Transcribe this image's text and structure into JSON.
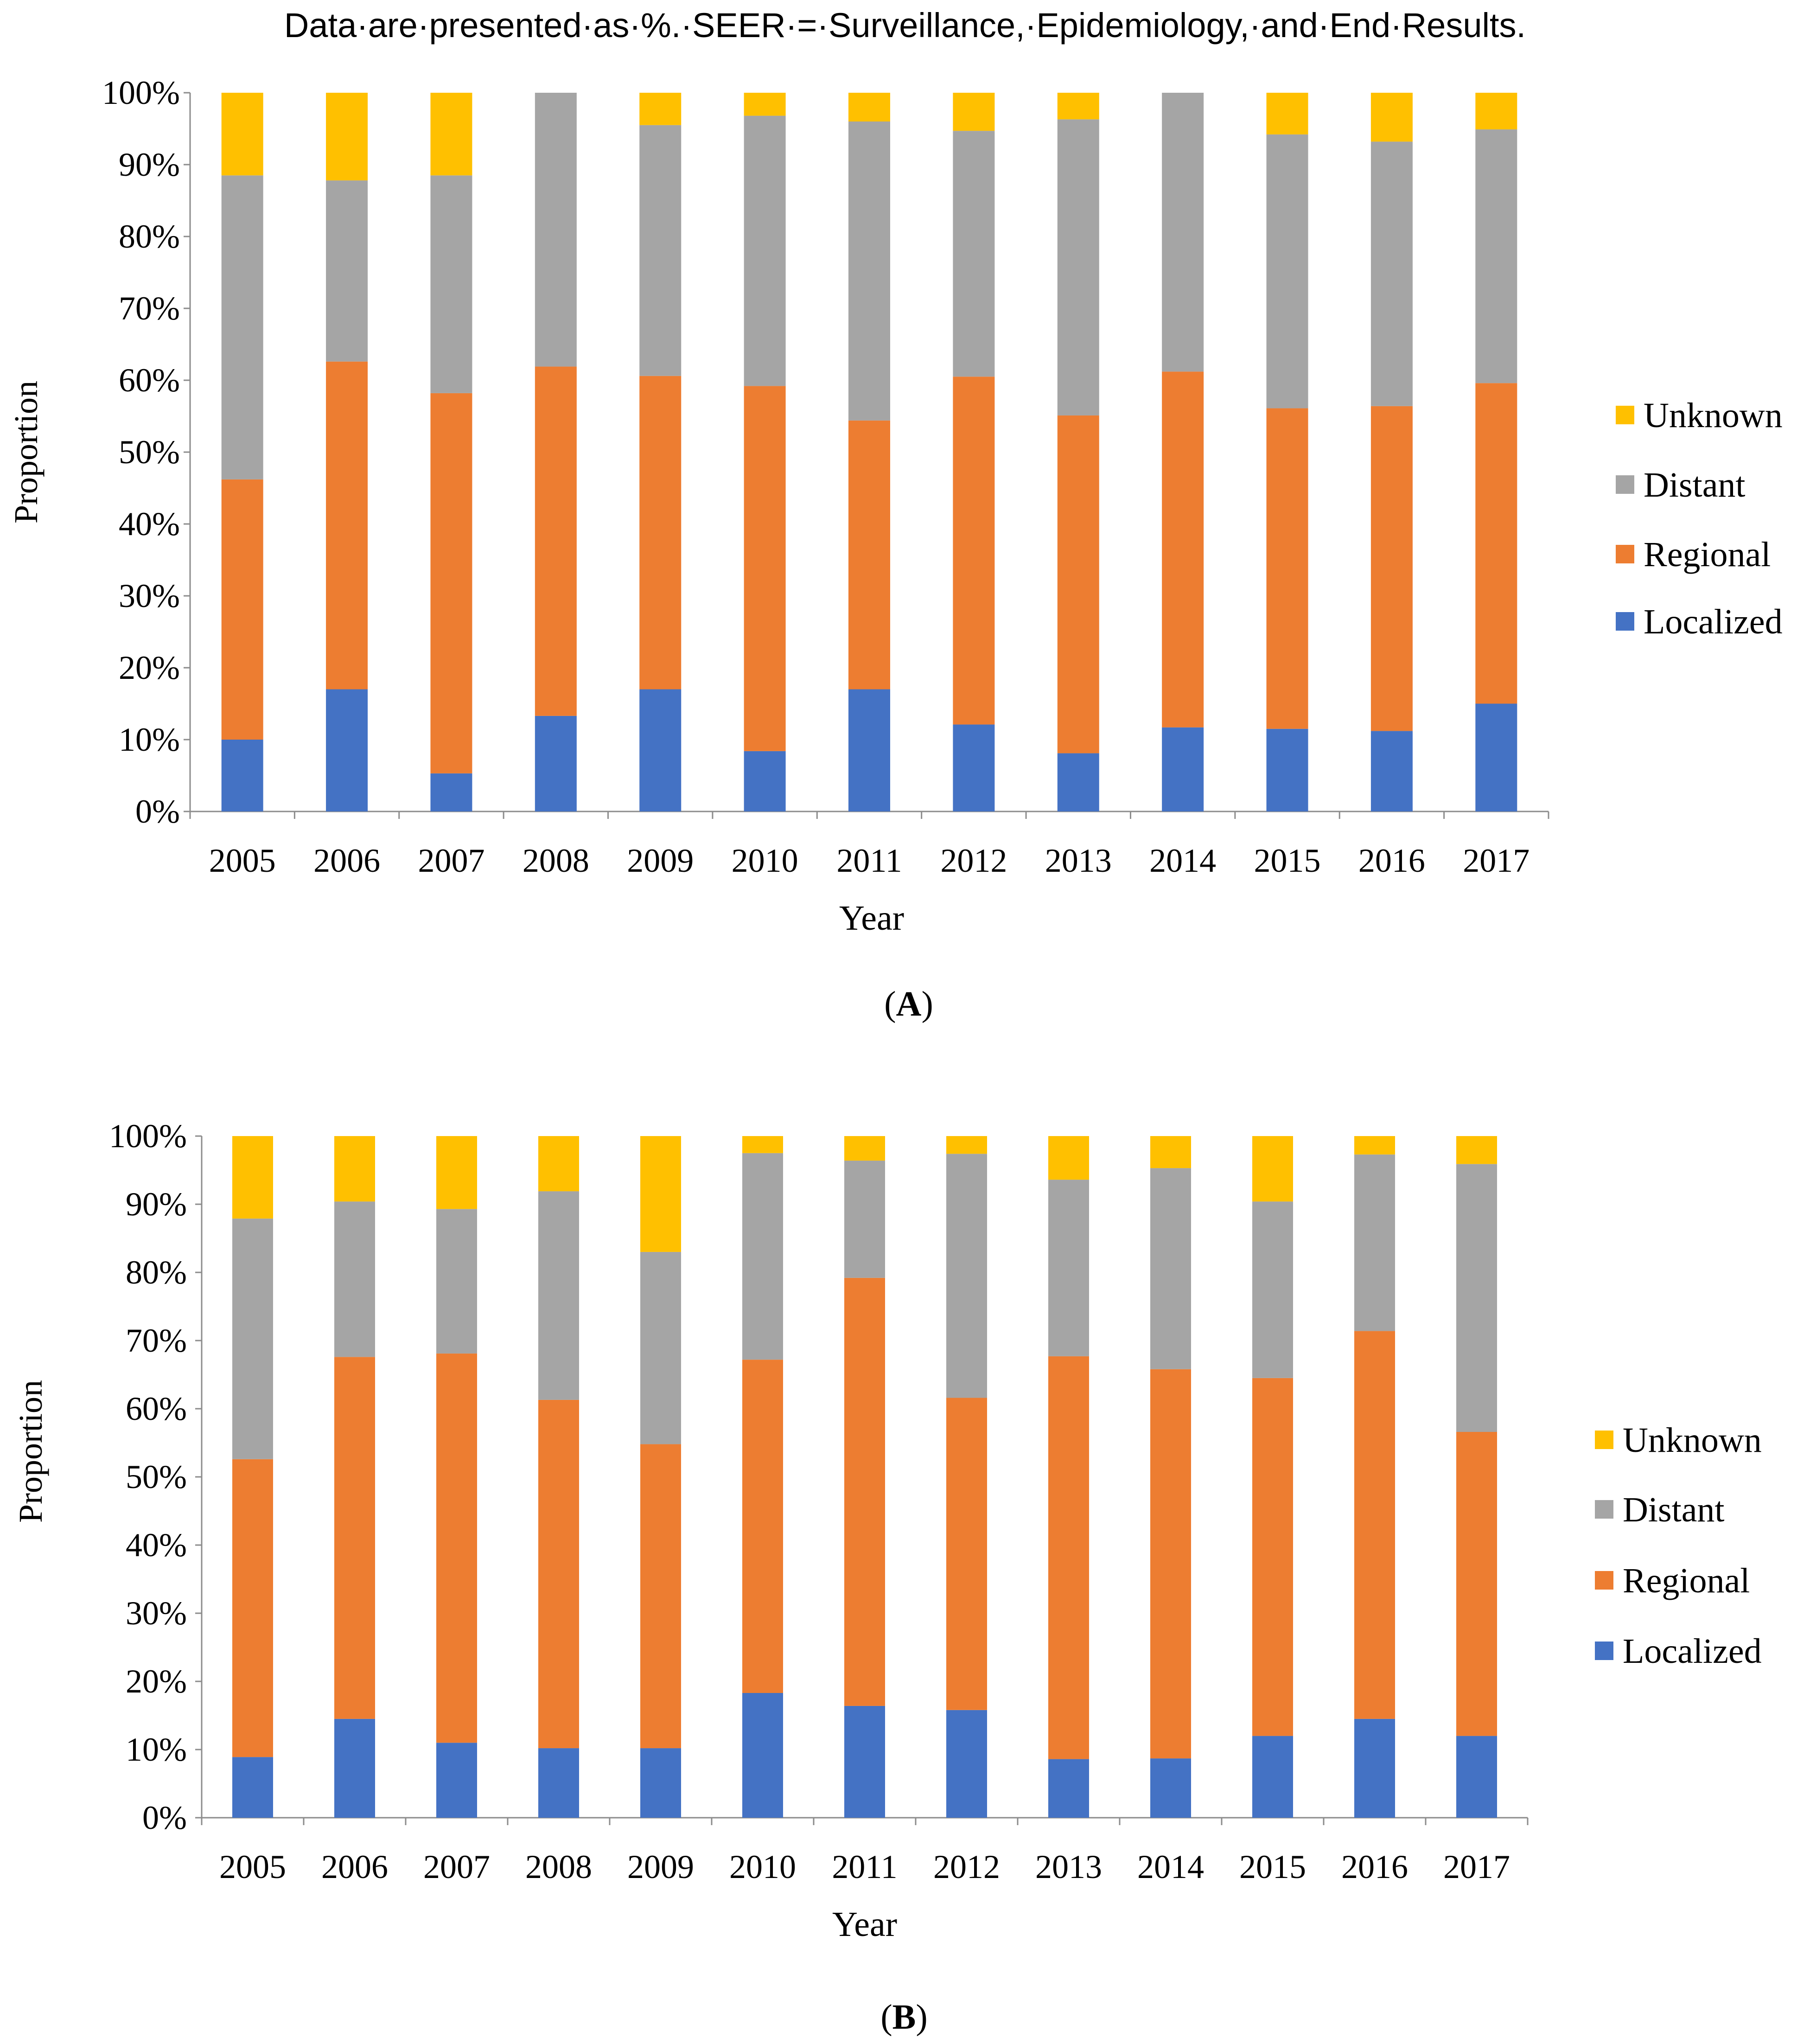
{
  "caption": "Data·are·presented·as·%.·SEER·=·Surveillance,·Epidemiology,·and·End·Results.",
  "colors": {
    "Localized": "#4472c4",
    "Regional": "#ed7d31",
    "Distant": "#a5a5a5",
    "Unknown": "#ffc000",
    "axis": "#8c8c8c",
    "text": "#000000"
  },
  "chart_data": [
    {
      "type": "bar",
      "stacked": true,
      "panel_label": "A",
      "xlabel": "Year",
      "ylabel": "Proportion",
      "ylim": [
        0,
        100
      ],
      "yticks": [
        "0%",
        "10%",
        "20%",
        "30%",
        "40%",
        "50%",
        "60%",
        "70%",
        "80%",
        "90%",
        "100%"
      ],
      "legend_position": "right",
      "legend": [
        "Unknown",
        "Distant",
        "Regional",
        "Localized"
      ],
      "categories": [
        "2005",
        "2006",
        "2007",
        "2008",
        "2009",
        "2010",
        "2011",
        "2012",
        "2013",
        "2014",
        "2015",
        "2016",
        "2017"
      ],
      "series": [
        {
          "name": "Localized",
          "values": [
            10,
            17,
            5.3,
            13.3,
            17,
            8.4,
            17,
            12.1,
            8.1,
            11.7,
            11.5,
            11.2,
            15
          ]
        },
        {
          "name": "Regional",
          "values": [
            36.2,
            45.6,
            52.9,
            48.6,
            43.6,
            50.8,
            37.4,
            48.4,
            47,
            49.5,
            44.6,
            45.2,
            44.6
          ]
        },
        {
          "name": "Distant",
          "values": [
            42.3,
            25.2,
            30.3,
            38.1,
            34.9,
            37.6,
            41.6,
            34.2,
            41.2,
            38.8,
            38.1,
            36.8,
            35.3
          ]
        },
        {
          "name": "Unknown",
          "values": [
            11.5,
            12.2,
            11.5,
            0,
            4.5,
            3.2,
            4,
            5.3,
            3.7,
            0,
            5.8,
            6.8,
            5.1
          ]
        }
      ]
    },
    {
      "type": "bar",
      "stacked": true,
      "panel_label": "B",
      "xlabel": "Year",
      "ylabel": "Proportion",
      "ylim": [
        0,
        100
      ],
      "yticks": [
        "0%",
        "10%",
        "20%",
        "30%",
        "40%",
        "50%",
        "60%",
        "70%",
        "80%",
        "90%",
        "100%"
      ],
      "legend_position": "right",
      "legend": [
        "Unknown",
        "Distant",
        "Regional",
        "Localized"
      ],
      "categories": [
        "2005",
        "2006",
        "2007",
        "2008",
        "2009",
        "2010",
        "2011",
        "2012",
        "2013",
        "2014",
        "2015",
        "2016",
        "2017"
      ],
      "series": [
        {
          "name": "Localized",
          "values": [
            8.9,
            14.5,
            11,
            10.2,
            10.2,
            18.3,
            16.4,
            15.8,
            8.6,
            8.7,
            12,
            14.5,
            12
          ]
        },
        {
          "name": "Regional",
          "values": [
            43.7,
            53.1,
            57.1,
            51.1,
            44.6,
            48.9,
            62.8,
            45.8,
            59.1,
            57.1,
            52.5,
            56.9,
            44.6
          ]
        },
        {
          "name": "Distant",
          "values": [
            35.3,
            22.8,
            21.2,
            30.6,
            28.2,
            30.3,
            17.2,
            35.8,
            25.9,
            29.5,
            25.9,
            25.9,
            39.3
          ]
        },
        {
          "name": "Unknown",
          "values": [
            12.1,
            9.6,
            10.7,
            8.1,
            17,
            2.5,
            3.6,
            2.6,
            6.4,
            4.7,
            9.6,
            2.7,
            4.1
          ]
        }
      ]
    }
  ]
}
